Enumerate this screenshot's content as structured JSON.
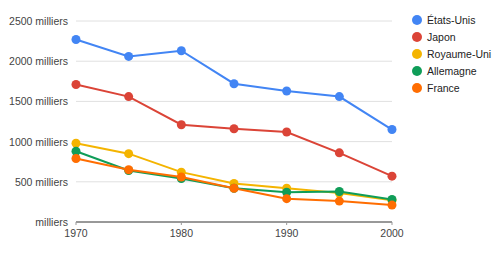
{
  "chart_data": {
    "type": "line",
    "x": [
      1970,
      1975,
      1980,
      1985,
      1990,
      1995,
      2000
    ],
    "series": [
      {
        "name": "États-Unis",
        "color": "#4285f4",
        "values": [
          2270,
          2060,
          2130,
          1720,
          1630,
          1560,
          1150
        ]
      },
      {
        "name": "Japon",
        "color": "#db4437",
        "values": [
          1710,
          1560,
          1210,
          1160,
          1120,
          860,
          570
        ]
      },
      {
        "name": "Royaume-Uni",
        "color": "#f4b400",
        "values": [
          980,
          850,
          620,
          480,
          420,
          360,
          270
        ]
      },
      {
        "name": "Allemagne",
        "color": "#0f9d58",
        "values": [
          880,
          640,
          540,
          420,
          370,
          380,
          280
        ]
      },
      {
        "name": "France",
        "color": "#ff6d01",
        "values": [
          790,
          650,
          560,
          420,
          290,
          260,
          210
        ]
      }
    ],
    "xlim": [
      1970,
      2000
    ],
    "xticks": [
      1970,
      1980,
      1990,
      2000
    ],
    "ylim": [
      0,
      2500
    ],
    "yticks": [
      {
        "value": 0,
        "label": "milliers"
      },
      {
        "value": 500,
        "label": "500 milliers"
      },
      {
        "value": 1000,
        "label": "1000 milliers"
      },
      {
        "value": 1500,
        "label": "1500 milliers"
      },
      {
        "value": 2000,
        "label": "2000 milliers"
      },
      {
        "value": 2500,
        "label": "2500 milliers"
      }
    ],
    "grid": true,
    "legend": "top-right",
    "marker": "circle"
  }
}
